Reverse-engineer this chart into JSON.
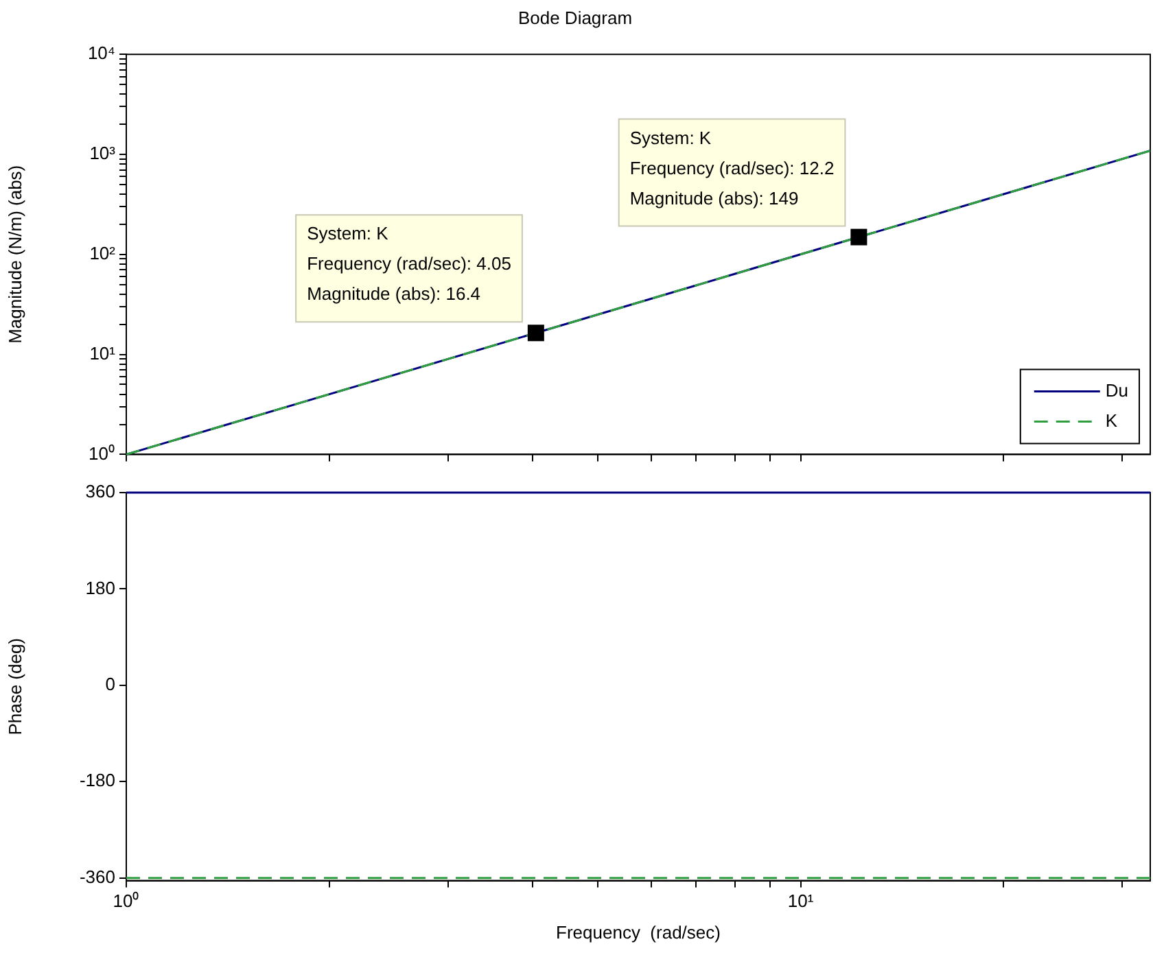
{
  "chart_data": [
    {
      "type": "line",
      "title": "Bode Diagram",
      "ylabel": "Magnitude (N/m) (abs)",
      "log": "xy",
      "grid": false,
      "legend": "bottom right",
      "marker": "none",
      "tick_labels": "y",
      "x": [
        1,
        2,
        4.05,
        8,
        12.2,
        20,
        33
      ],
      "series": [
        {
          "name": "Du",
          "color": "#000080",
          "line_style": "solid",
          "values": [
            1,
            4,
            16.4,
            64,
            149,
            400,
            1089
          ]
        },
        {
          "name": "K",
          "color": "#2e9e3e",
          "line_style": "dashed",
          "values": [
            1,
            4,
            16.4,
            64,
            149,
            400,
            1089
          ]
        }
      ],
      "xlim": [
        1,
        33
      ],
      "xticks": [
        {
          "value": 1,
          "label": null
        },
        {
          "value": 2,
          "label": null
        },
        {
          "value": 3,
          "label": null
        },
        {
          "value": 4,
          "label": null
        },
        {
          "value": 5,
          "label": null
        },
        {
          "value": 6,
          "label": null
        },
        {
          "value": 7,
          "label": null
        },
        {
          "value": 8,
          "label": null
        },
        {
          "value": 9,
          "label": null
        },
        {
          "value": 10,
          "label": null
        },
        {
          "value": 20,
          "label": null
        },
        {
          "value": 30,
          "label": null
        }
      ],
      "ylim": [
        1,
        10000
      ],
      "yticks": [
        {
          "value": 1,
          "label": "10⁰"
        },
        {
          "value": 2,
          "label": null
        },
        {
          "value": 3,
          "label": null
        },
        {
          "value": 4,
          "label": null
        },
        {
          "value": 5,
          "label": null
        },
        {
          "value": 6,
          "label": null
        },
        {
          "value": 7,
          "label": null
        },
        {
          "value": 8,
          "label": null
        },
        {
          "value": 9,
          "label": null
        },
        {
          "value": 10,
          "label": "10¹"
        },
        {
          "value": 20,
          "label": null
        },
        {
          "value": 30,
          "label": null
        },
        {
          "value": 40,
          "label": null
        },
        {
          "value": 50,
          "label": null
        },
        {
          "value": 60,
          "label": null
        },
        {
          "value": 70,
          "label": null
        },
        {
          "value": 80,
          "label": null
        },
        {
          "value": 90,
          "label": null
        },
        {
          "value": 100,
          "label": "10²"
        },
        {
          "value": 200,
          "label": null
        },
        {
          "value": 300,
          "label": null
        },
        {
          "value": 400,
          "label": null
        },
        {
          "value": 500,
          "label": null
        },
        {
          "value": 600,
          "label": null
        },
        {
          "value": 700,
          "label": null
        },
        {
          "value": 800,
          "label": null
        },
        {
          "value": 900,
          "label": null
        },
        {
          "value": 1000,
          "label": "10³"
        },
        {
          "value": 2000,
          "label": null
        },
        {
          "value": 3000,
          "label": null
        },
        {
          "value": 4000,
          "label": null
        },
        {
          "value": 5000,
          "label": null
        },
        {
          "value": 6000,
          "label": null
        },
        {
          "value": 7000,
          "label": null
        },
        {
          "value": 8000,
          "label": null
        },
        {
          "value": 9000,
          "label": null
        },
        {
          "value": 10000,
          "label": "10⁴"
        }
      ],
      "annotations": [
        {
          "text": "System: K\nFrequency (rad/sec): 4.05\nMagnitude (abs): 16.4",
          "x": 4.05,
          "y": 16.4
        },
        {
          "text": "System: K\nFrequency (rad/sec): 12.2\nMagnitude (abs): 149",
          "x": 12.2,
          "y": 149
        }
      ]
    },
    {
      "type": "line",
      "xlabel": "Frequency  (rad/sec)",
      "ylabel": "Phase (deg)",
      "log": "x",
      "grid": false,
      "legend": false,
      "marker": "none",
      "x": [
        1,
        33
      ],
      "series": [
        {
          "color": "#000080",
          "line_style": "solid",
          "values": [
            360,
            360
          ]
        },
        {
          "color": "#2e9e3e",
          "line_style": "dashed",
          "values": [
            -360,
            -360
          ]
        }
      ],
      "xlim": [
        1,
        33
      ],
      "xticks": [
        {
          "value": 1,
          "label": "10⁰"
        },
        {
          "value": 2,
          "label": null
        },
        {
          "value": 3,
          "label": null
        },
        {
          "value": 4,
          "label": null
        },
        {
          "value": 5,
          "label": null
        },
        {
          "value": 6,
          "label": null
        },
        {
          "value": 7,
          "label": null
        },
        {
          "value": 8,
          "label": null
        },
        {
          "value": 9,
          "label": null
        },
        {
          "value": 10,
          "label": "10¹"
        },
        {
          "value": 20,
          "label": null
        },
        {
          "value": 30,
          "label": null
        }
      ],
      "ylim": [
        -365,
        360
      ],
      "yticks": [
        -360,
        -180,
        0,
        180,
        360
      ]
    }
  ]
}
